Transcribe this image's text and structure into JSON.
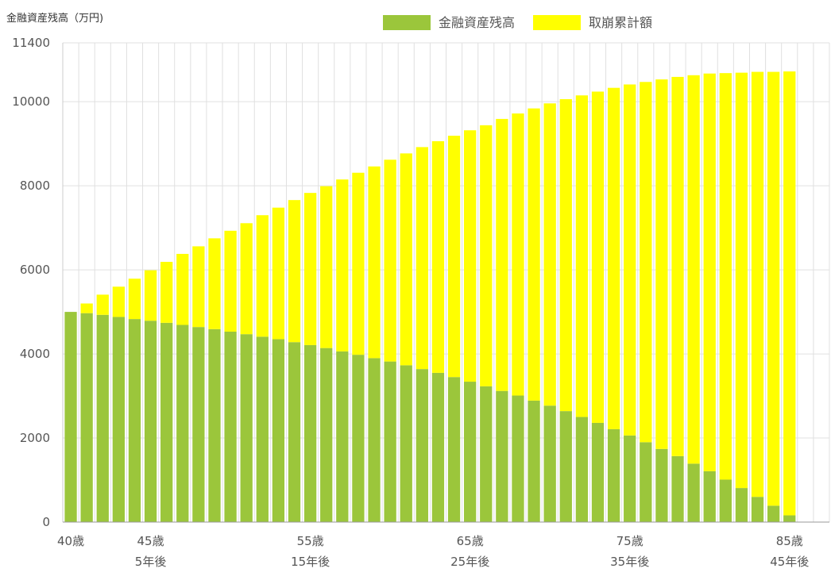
{
  "chart_data": {
    "type": "bar",
    "stacked": true,
    "y_unit_label": "金融資産残高（万円)",
    "ylim": [
      0,
      11400
    ],
    "y_ticks": [
      0,
      2000,
      4000,
      6000,
      8000,
      10000,
      11400
    ],
    "grid": true,
    "legend_position": "top",
    "x_age_start": 40,
    "x_age_end": 87,
    "x_labels_primary": [
      {
        "age": 40,
        "label": "40歳"
      },
      {
        "age": 45,
        "label": "45歳"
      },
      {
        "age": 55,
        "label": "55歳"
      },
      {
        "age": 65,
        "label": "65歳"
      },
      {
        "age": 75,
        "label": "75歳"
      },
      {
        "age": 85,
        "label": "85歳"
      }
    ],
    "x_labels_secondary": [
      {
        "age": 45,
        "label": "5年後"
      },
      {
        "age": 55,
        "label": "15年後"
      },
      {
        "age": 65,
        "label": "25年後"
      },
      {
        "age": 75,
        "label": "35年後"
      },
      {
        "age": 85,
        "label": "45年後"
      }
    ],
    "categories": [
      40,
      41,
      42,
      43,
      44,
      45,
      46,
      47,
      48,
      49,
      50,
      51,
      52,
      53,
      54,
      55,
      56,
      57,
      58,
      59,
      60,
      61,
      62,
      63,
      64,
      65,
      66,
      67,
      68,
      69,
      70,
      71,
      72,
      73,
      74,
      75,
      76,
      77,
      78,
      79,
      80,
      81,
      82,
      83,
      84,
      85
    ],
    "series": [
      {
        "name": "金融資産残高",
        "color": "#9bc63b",
        "values": [
          5000,
          4970,
          4930,
          4880,
          4830,
          4790,
          4740,
          4690,
          4640,
          4590,
          4530,
          4470,
          4410,
          4350,
          4280,
          4210,
          4140,
          4060,
          3980,
          3900,
          3820,
          3730,
          3640,
          3550,
          3450,
          3340,
          3230,
          3120,
          3010,
          2890,
          2770,
          2640,
          2500,
          2360,
          2210,
          2060,
          1900,
          1740,
          1570,
          1390,
          1210,
          1010,
          810,
          600,
          390,
          160
        ]
      },
      {
        "name": "取崩累計額",
        "color": "#ffff00",
        "values": [
          0,
          230,
          480,
          720,
          960,
          1200,
          1450,
          1690,
          1920,
          2160,
          2400,
          2640,
          2890,
          3130,
          3380,
          3620,
          3850,
          4090,
          4330,
          4560,
          4800,
          5040,
          5280,
          5510,
          5740,
          5980,
          6210,
          6470,
          6710,
          6950,
          7190,
          7420,
          7650,
          7880,
          8120,
          8350,
          8570,
          8790,
          9020,
          9240,
          9460,
          9670,
          9880,
          10110,
          10320,
          10560
        ]
      }
    ]
  },
  "colors": {
    "grid": "#e0e0e0",
    "axis": "#cccccc",
    "background": "#ffffff"
  }
}
